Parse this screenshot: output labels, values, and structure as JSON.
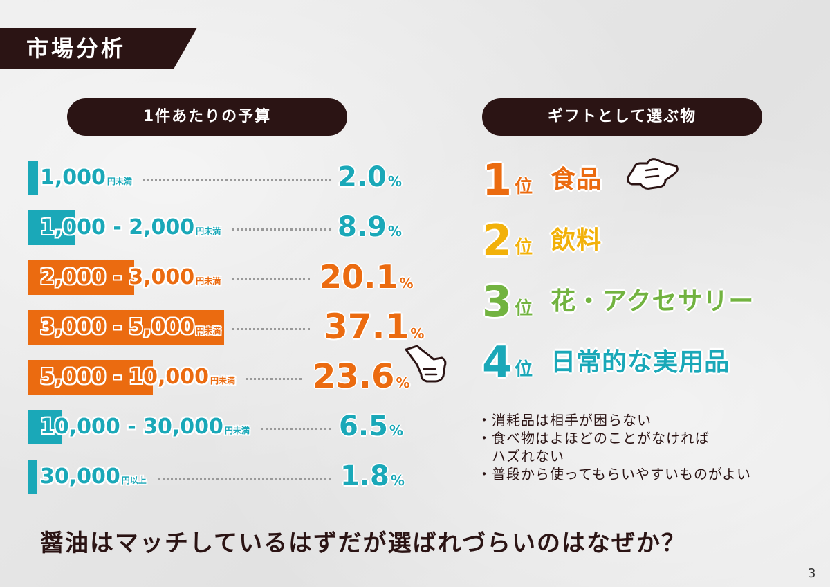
{
  "page": {
    "title": "市場分析",
    "page_number": "3",
    "question": "醤油はマッチしているはずだが選ばれづらいのはなぜか？"
  },
  "colors": {
    "teal": "#1aa8b8",
    "orange": "#eb6b10",
    "yellow": "#f2b10a",
    "green": "#72b340",
    "dark": "#2b1414"
  },
  "chart_data": {
    "type": "bar",
    "title": "1件あたりの予算",
    "categories": [
      {
        "range": "1,000",
        "unit": "円未満"
      },
      {
        "range": "1,000 - 2,000",
        "unit": "円未満"
      },
      {
        "range": "2,000 - 3,000",
        "unit": "円未満"
      },
      {
        "range": "3,000 - 5,000",
        "unit": "円未満"
      },
      {
        "range": "5,000 - 10,000",
        "unit": "円未満"
      },
      {
        "range": "10,000 - 30,000",
        "unit": "円未満"
      },
      {
        "range": "30,000",
        "unit": "円以上"
      }
    ],
    "values": [
      2.0,
      8.9,
      20.1,
      37.1,
      23.6,
      6.5,
      1.8
    ],
    "value_labels": [
      "2.0",
      "8.9",
      "20.1",
      "37.1",
      "23.6",
      "6.5",
      "1.8"
    ],
    "value_unit": "%",
    "highlight": [
      false,
      false,
      true,
      true,
      true,
      false,
      false
    ]
  },
  "gifts": {
    "title": "ギフトとして選ぶ物",
    "ranks": [
      {
        "num": "1",
        "suffix": "位",
        "item": "食品",
        "color": "#eb6b10"
      },
      {
        "num": "2",
        "suffix": "位",
        "item": "飲料",
        "color": "#f2b10a"
      },
      {
        "num": "3",
        "suffix": "位",
        "item": "花・アクセサリー",
        "color": "#72b340"
      },
      {
        "num": "4",
        "suffix": "位",
        "item": "日常的な実用品",
        "color": "#1aa8b8"
      }
    ],
    "notes": [
      "・消耗品は相手が困らない",
      "・食べ物はよほどのことがなければ",
      "　ハズれない",
      "・普段から使ってもらいやすいものがよい"
    ]
  },
  "icons": [
    "pointing-hand-icon"
  ]
}
